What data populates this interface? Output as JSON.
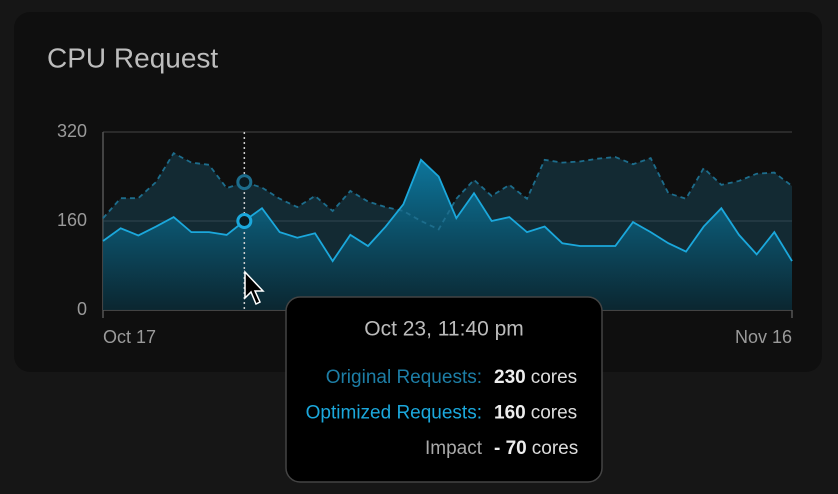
{
  "chart_data": {
    "type": "area",
    "title": "CPU Request",
    "categories": [
      "Oct 17",
      null,
      null,
      null,
      null,
      null,
      null,
      null,
      null,
      null,
      null,
      null,
      null,
      null,
      null,
      null,
      null,
      null,
      null,
      null,
      null,
      null,
      null,
      null,
      null,
      null,
      null,
      null,
      null,
      null,
      null,
      null,
      null,
      null,
      null,
      null,
      null,
      null,
      null,
      "Nov 16"
    ],
    "series": [
      {
        "name": "Original Requests",
        "color": "#1d6d8c",
        "line_style": "dashed",
        "values": [
          165,
          201,
          201,
          230,
          282,
          265,
          261,
          219,
          230,
          220,
          200,
          185,
          205,
          178,
          214,
          195,
          185,
          178,
          160,
          145,
          200,
          234,
          205,
          225,
          200,
          270,
          265,
          267,
          272,
          275,
          262,
          273,
          210,
          200,
          255,
          225,
          232,
          245,
          247,
          223
        ]
      },
      {
        "name": "Optimized Requests",
        "color": "#1ba8dc",
        "line_style": "solid",
        "values": [
          124,
          147,
          134,
          150,
          167,
          140,
          140,
          135,
          160,
          183,
          140,
          130,
          138,
          88,
          135,
          115,
          150,
          190,
          270,
          240,
          165,
          210,
          160,
          167,
          140,
          150,
          120,
          115,
          115,
          115,
          158,
          140,
          120,
          105,
          150,
          183,
          135,
          100,
          140,
          88
        ]
      }
    ],
    "ylim": [
      0,
      320
    ],
    "yticks": [
      0,
      160,
      320
    ],
    "grid": true,
    "highlight_index": 8,
    "tooltip": {
      "title": "Oct 23, 11:40 pm",
      "rows": [
        {
          "label": "Original Requests:",
          "value": "230",
          "unit": "cores",
          "color": "#1d7ea6"
        },
        {
          "label": "Optimized Requests:",
          "value": "160",
          "unit": "cores",
          "color": "#1ba8dc"
        },
        {
          "label": "Impact",
          "value": "- 70",
          "unit": "cores",
          "color": "#aaaaaa"
        }
      ]
    }
  }
}
